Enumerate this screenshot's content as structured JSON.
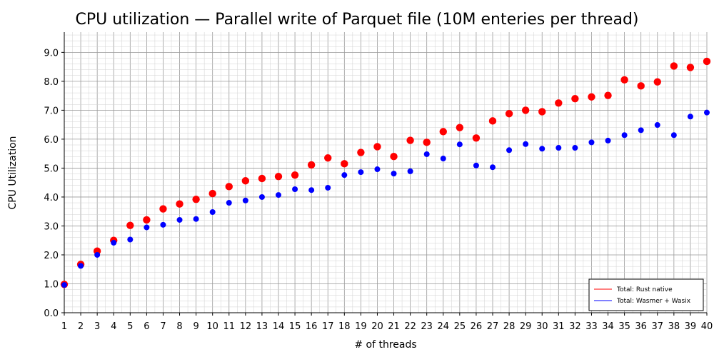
{
  "chart_data": {
    "type": "scatter",
    "title": "CPU utilization — Parallel write of Parquet file (10M enteries per thread)",
    "xlabel": "# of threads",
    "ylabel": "CPU Utilization",
    "x": [
      1,
      2,
      3,
      4,
      5,
      6,
      7,
      8,
      9,
      10,
      11,
      12,
      13,
      14,
      15,
      16,
      17,
      18,
      19,
      20,
      21,
      22,
      23,
      24,
      25,
      26,
      27,
      28,
      29,
      30,
      31,
      32,
      33,
      34,
      35,
      36,
      37,
      38,
      39,
      40
    ],
    "xticks": [
      1,
      2,
      3,
      4,
      5,
      6,
      7,
      8,
      9,
      10,
      11,
      12,
      13,
      14,
      15,
      16,
      17,
      18,
      19,
      20,
      21,
      22,
      23,
      24,
      25,
      26,
      27,
      28,
      29,
      30,
      31,
      32,
      33,
      34,
      35,
      36,
      37,
      38,
      39,
      40
    ],
    "yticks": [
      0.0,
      1.0,
      2.0,
      3.0,
      4.0,
      5.0,
      6.0,
      7.0,
      8.0,
      9.0
    ],
    "ytick_labels": [
      "0.0",
      "1.0",
      "2.0",
      "3.0",
      "4.0",
      "5.0",
      "6.0",
      "7.0",
      "8.0",
      "9.0"
    ],
    "xlim": [
      1,
      40
    ],
    "ylim": [
      0,
      9.7
    ],
    "grid": "major and minor",
    "legend_position": "bottom-right",
    "series": [
      {
        "name": "Total: Rust native",
        "color": "#ff0000",
        "values": [
          0.98,
          1.67,
          2.13,
          2.5,
          3.02,
          3.21,
          3.59,
          3.76,
          3.92,
          4.12,
          4.36,
          4.56,
          4.64,
          4.71,
          4.76,
          5.11,
          5.35,
          5.15,
          5.54,
          5.74,
          5.4,
          5.96,
          5.89,
          6.26,
          6.4,
          6.04,
          6.63,
          6.88,
          7.0,
          6.95,
          7.25,
          7.4,
          7.46,
          7.51,
          8.05,
          7.84,
          7.98,
          8.53,
          8.48,
          8.69
        ]
      },
      {
        "name": "Total: Wasmer + Wasix",
        "color": "#0000ff",
        "values": [
          0.96,
          1.62,
          2.0,
          2.42,
          2.53,
          2.95,
          3.04,
          3.21,
          3.24,
          3.48,
          3.8,
          3.88,
          4.0,
          4.07,
          4.27,
          4.24,
          4.32,
          4.76,
          4.86,
          4.96,
          4.81,
          4.89,
          5.48,
          5.33,
          5.82,
          5.09,
          5.03,
          5.62,
          5.83,
          5.67,
          5.7,
          5.7,
          5.89,
          5.95,
          6.14,
          6.31,
          6.49,
          6.14,
          6.78,
          6.92
        ]
      }
    ]
  }
}
